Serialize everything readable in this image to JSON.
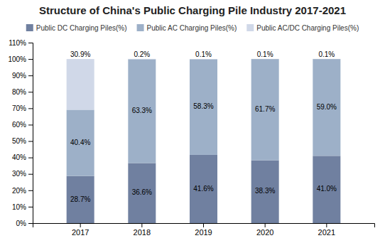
{
  "chart_data": {
    "type": "bar",
    "title": "Structure of China's Public Charging Pile Industry 2017-2021",
    "categories": [
      "2017",
      "2018",
      "2019",
      "2020",
      "2021"
    ],
    "series": [
      {
        "name": "Public DC Charging Piles(%)",
        "color": "#7080a0",
        "values": [
          28.7,
          36.6,
          41.6,
          38.3,
          41.0
        ],
        "value_labels": [
          "28.7%",
          "36.6%",
          "41.6%",
          "38.3%",
          "41.0%"
        ]
      },
      {
        "name": "Public AC Charging Piles(%)",
        "color": "#9db0c8",
        "values": [
          40.4,
          63.3,
          58.3,
          61.7,
          59.0
        ],
        "value_labels": [
          "40.4%",
          "63.3%",
          "58.3%",
          "61.7%",
          "59.0%"
        ]
      },
      {
        "name": "Public AC/DC Charging Piles(%)",
        "color": "#d0d8e8",
        "values": [
          30.9,
          0.2,
          0.1,
          0.1,
          0.1
        ],
        "value_labels": [
          "30.9%",
          "0.2%",
          "0.1%",
          "0.1%",
          "0.1%"
        ]
      }
    ],
    "stacked": true,
    "data_labels": true,
    "legend": "top",
    "grid": false,
    "ylim": [
      0,
      110
    ],
    "yticks": [
      {
        "value": 0,
        "label": "0%"
      },
      {
        "value": 10,
        "label": "10%"
      },
      {
        "value": 20,
        "label": "20%"
      },
      {
        "value": 30,
        "label": "30%"
      },
      {
        "value": 40,
        "label": "40%"
      },
      {
        "value": 50,
        "label": "50%"
      },
      {
        "value": 60,
        "label": "60%"
      },
      {
        "value": 70,
        "label": "70%"
      },
      {
        "value": 80,
        "label": "80%"
      },
      {
        "value": 90,
        "label": "90%"
      },
      {
        "value": 100,
        "label": "100%"
      },
      {
        "value": 110,
        "label": "110%"
      }
    ]
  }
}
